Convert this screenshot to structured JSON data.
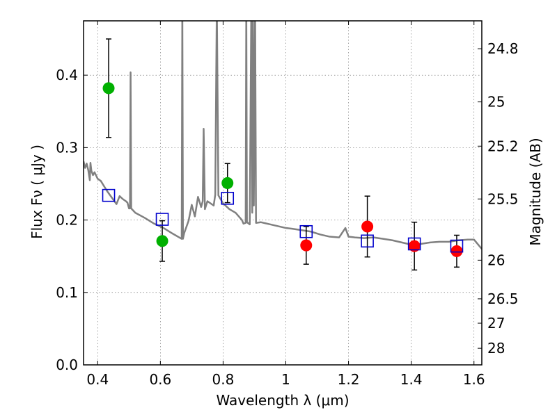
{
  "chart_data": {
    "type": "scatter",
    "xlabel": "Wavelength  λ (μm)",
    "ylabel": "Flux  Fν  ( μJy )",
    "y2label": "Magnitude (AB)",
    "xlim": [
      0.355,
      1.625
    ],
    "ylim": [
      0.0,
      0.475
    ],
    "grid": true,
    "x_ticks": [
      {
        "value": 0.4,
        "label": "0.4"
      },
      {
        "value": 0.6,
        "label": "0.6"
      },
      {
        "value": 0.8,
        "label": "0.8"
      },
      {
        "value": 1.0,
        "label": "1"
      },
      {
        "value": 1.2,
        "label": "1.2"
      },
      {
        "value": 1.4,
        "label": "1.4"
      },
      {
        "value": 1.6,
        "label": "1.6"
      }
    ],
    "y_ticks": [
      {
        "value": 0.0,
        "label": "0.0"
      },
      {
        "value": 0.1,
        "label": "0.1"
      },
      {
        "value": 0.2,
        "label": "0.2"
      },
      {
        "value": 0.3,
        "label": "0.3"
      },
      {
        "value": 0.4,
        "label": "0.4"
      }
    ],
    "mag_ticks": [
      {
        "value": 24.8,
        "label": "24.8"
      },
      {
        "value": 25,
        "label": "25"
      },
      {
        "value": 25.2,
        "label": "25.2"
      },
      {
        "value": 25.5,
        "label": "25.5"
      },
      {
        "value": 26,
        "label": "26"
      },
      {
        "value": 26.5,
        "label": "26.5"
      },
      {
        "value": 27,
        "label": "27"
      },
      {
        "value": 28,
        "label": "28"
      }
    ],
    "series": [
      {
        "marker": "circle",
        "color": "#00b000",
        "points": [
          {
            "x": 0.435,
            "y": 0.382,
            "err": 0.068
          },
          {
            "x": 0.606,
            "y": 0.171,
            "err": 0.028
          },
          {
            "x": 0.814,
            "y": 0.251,
            "err": 0.027
          }
        ]
      },
      {
        "marker": "circle",
        "color": "#ff0000",
        "points": [
          {
            "x": 1.065,
            "y": 0.165,
            "err": 0.026
          },
          {
            "x": 1.26,
            "y": 0.191,
            "err": 0.042
          },
          {
            "x": 1.41,
            "y": 0.164,
            "err": 0.033
          },
          {
            "x": 1.545,
            "y": 0.157,
            "err": 0.022
          }
        ]
      },
      {
        "marker": "open-square",
        "color": "#0000cc",
        "points": [
          {
            "x": 0.435,
            "y": 0.234
          },
          {
            "x": 0.606,
            "y": 0.201
          },
          {
            "x": 0.814,
            "y": 0.23
          },
          {
            "x": 1.065,
            "y": 0.184
          },
          {
            "x": 1.26,
            "y": 0.171
          },
          {
            "x": 1.41,
            "y": 0.167
          },
          {
            "x": 1.545,
            "y": 0.164
          }
        ]
      }
    ],
    "model_spectrum": {
      "color": "#808080",
      "points": [
        [
          0.355,
          0.281
        ],
        [
          0.36,
          0.272
        ],
        [
          0.365,
          0.278
        ],
        [
          0.37,
          0.269
        ],
        [
          0.375,
          0.255
        ],
        [
          0.377,
          0.279
        ],
        [
          0.38,
          0.268
        ],
        [
          0.385,
          0.262
        ],
        [
          0.39,
          0.266
        ],
        [
          0.4,
          0.257
        ],
        [
          0.41,
          0.254
        ],
        [
          0.42,
          0.247
        ],
        [
          0.43,
          0.24
        ],
        [
          0.44,
          0.234
        ],
        [
          0.45,
          0.228
        ],
        [
          0.46,
          0.222
        ],
        [
          0.47,
          0.233
        ],
        [
          0.48,
          0.229
        ],
        [
          0.49,
          0.226
        ],
        [
          0.495,
          0.224
        ],
        [
          0.5,
          0.216
        ],
        [
          0.503,
          0.216
        ],
        [
          0.505,
          0.404
        ],
        [
          0.507,
          0.216
        ],
        [
          0.52,
          0.21
        ],
        [
          0.55,
          0.203
        ],
        [
          0.58,
          0.195
        ],
        [
          0.61,
          0.189
        ],
        [
          0.64,
          0.181
        ],
        [
          0.66,
          0.176
        ],
        [
          0.668,
          0.174
        ],
        [
          0.67,
          0.5
        ],
        [
          0.672,
          0.174
        ],
        [
          0.676,
          0.182
        ],
        [
          0.69,
          0.199
        ],
        [
          0.7,
          0.221
        ],
        [
          0.71,
          0.205
        ],
        [
          0.72,
          0.232
        ],
        [
          0.73,
          0.218
        ],
        [
          0.735,
          0.226
        ],
        [
          0.738,
          0.326
        ],
        [
          0.742,
          0.215
        ],
        [
          0.75,
          0.226
        ],
        [
          0.76,
          0.223
        ],
        [
          0.77,
          0.22
        ],
        [
          0.775,
          0.235
        ],
        [
          0.78,
          0.5
        ],
        [
          0.785,
          0.234
        ],
        [
          0.8,
          0.223
        ],
        [
          0.82,
          0.215
        ],
        [
          0.84,
          0.21
        ],
        [
          0.86,
          0.2
        ],
        [
          0.865,
          0.195
        ],
        [
          0.872,
          0.196
        ],
        [
          0.874,
          0.5
        ],
        [
          0.876,
          0.197
        ],
        [
          0.885,
          0.194
        ],
        [
          0.89,
          0.5
        ],
        [
          0.893,
          0.21
        ],
        [
          0.895,
          0.5
        ],
        [
          0.898,
          0.22
        ],
        [
          0.902,
          0.5
        ],
        [
          0.905,
          0.196
        ],
        [
          0.92,
          0.197
        ],
        [
          0.95,
          0.194
        ],
        [
          0.98,
          0.191
        ],
        [
          1.0,
          0.189
        ],
        [
          1.02,
          0.188
        ],
        [
          1.05,
          0.186
        ],
        [
          1.08,
          0.184
        ],
        [
          1.11,
          0.18
        ],
        [
          1.14,
          0.177
        ],
        [
          1.17,
          0.176
        ],
        [
          1.19,
          0.189
        ],
        [
          1.2,
          0.177
        ],
        [
          1.22,
          0.176
        ],
        [
          1.25,
          0.175
        ],
        [
          1.28,
          0.176
        ],
        [
          1.31,
          0.174
        ],
        [
          1.34,
          0.172
        ],
        [
          1.37,
          0.169
        ],
        [
          1.4,
          0.166
        ],
        [
          1.43,
          0.167
        ],
        [
          1.46,
          0.169
        ],
        [
          1.49,
          0.17
        ],
        [
          1.52,
          0.17
        ],
        [
          1.55,
          0.172
        ],
        [
          1.58,
          0.173
        ],
        [
          1.6,
          0.173
        ],
        [
          1.625,
          0.16
        ]
      ]
    }
  }
}
